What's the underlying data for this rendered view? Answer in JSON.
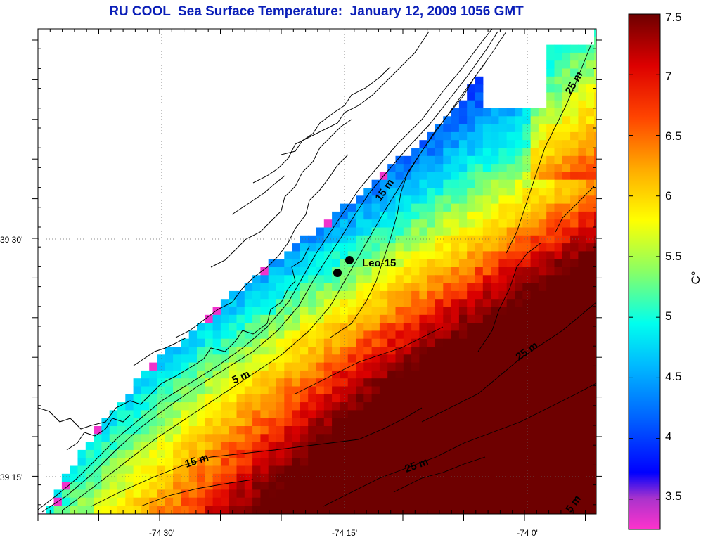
{
  "title": "RU COOL  Sea Surface Temperature:  January 12, 2009 1056 GMT",
  "axes": {
    "lat_ticks": [
      {
        "label": "39 30'",
        "lat": 39.5
      },
      {
        "label": "39 15'",
        "lat": 39.25
      }
    ],
    "lon_ticks": [
      {
        "label": "-74 30'",
        "lon": -74.5
      },
      {
        "label": "-74 15'",
        "lon": -74.25
      },
      {
        "label": "-74 0'",
        "lon": -74.0
      }
    ]
  },
  "colorbar": {
    "unit_label": "C°",
    "min": 3.25,
    "max": 7.5,
    "ticks": [
      {
        "label": "3.5",
        "value": 3.5
      },
      {
        "label": "4",
        "value": 4.0
      },
      {
        "label": "4.5",
        "value": 4.5
      },
      {
        "label": "5",
        "value": 5.0
      },
      {
        "label": "5.5",
        "value": 5.5
      },
      {
        "label": "6",
        "value": 6.0
      },
      {
        "label": "6.5",
        "value": 6.5
      },
      {
        "label": "7",
        "value": 7.0
      },
      {
        "label": "7.5",
        "value": 7.5
      }
    ],
    "colors": [
      "#ff33cc",
      "#8a33cc",
      "#0000ff",
      "#0077ff",
      "#00ccff",
      "#33ffcc",
      "#aaff55",
      "#ffff00",
      "#ffaa00",
      "#ff5500",
      "#ee0000",
      "#990000",
      "#660000"
    ]
  },
  "station": {
    "label": "Leo-15"
  },
  "depth_labels": [
    {
      "label": "25 m",
      "pos": "northeast"
    },
    {
      "label": "15 m",
      "pos": "center-north"
    },
    {
      "label": "5 m",
      "pos": "southwest-coast"
    },
    {
      "label": "15 m",
      "pos": "southwest"
    },
    {
      "label": "25 m",
      "pos": "south-center"
    },
    {
      "label": "25 m",
      "pos": "east"
    },
    {
      "label": "5 m",
      "pos": "southeast-corner"
    }
  ],
  "colors": {
    "title": "#0b1fb8",
    "no_data": "#ffffff",
    "land_outline": "#000000"
  }
}
